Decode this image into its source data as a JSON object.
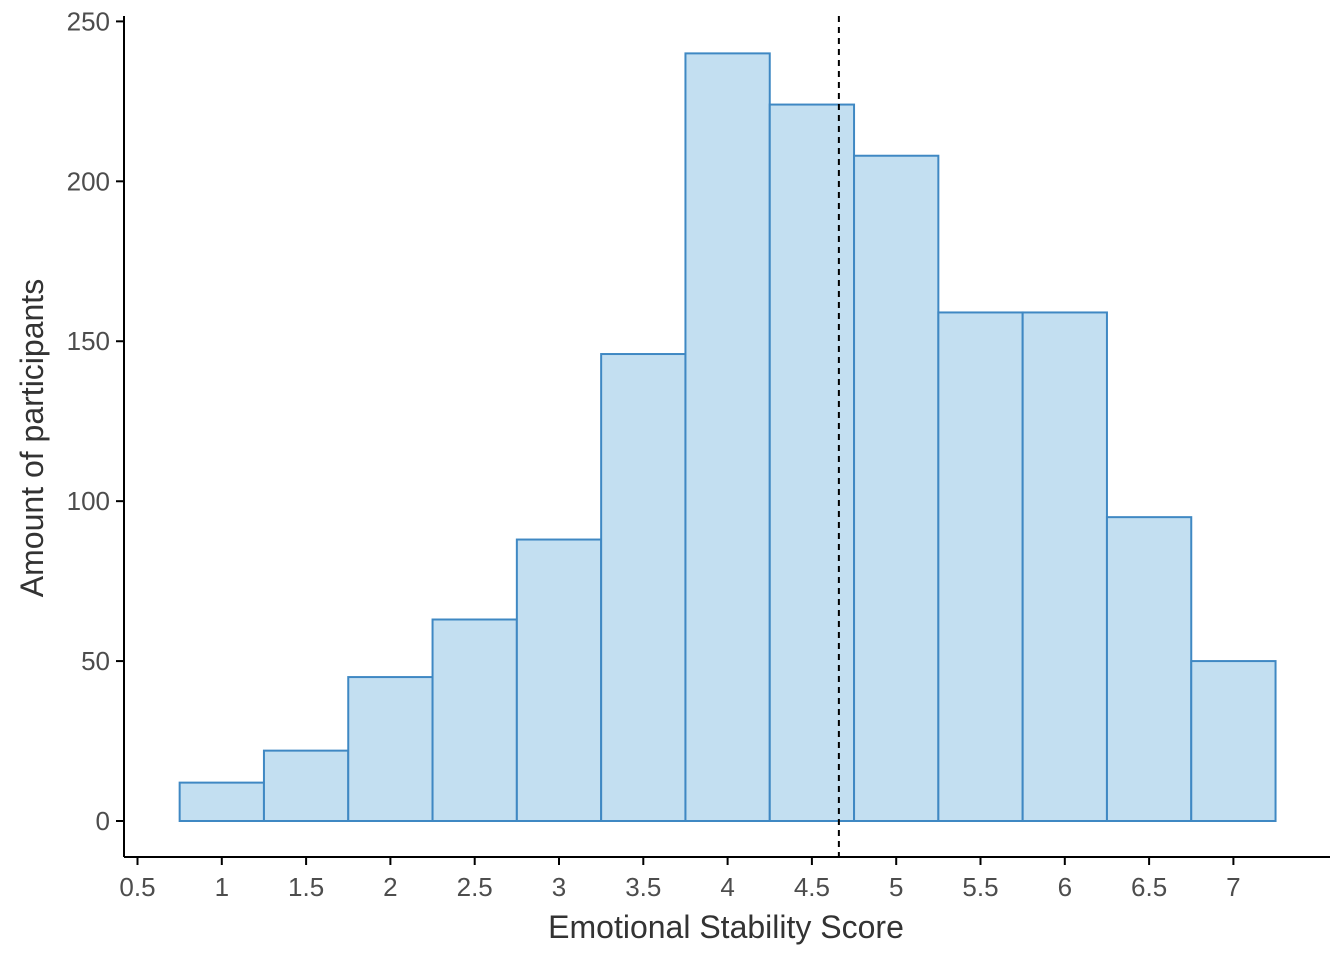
{
  "chart_data": {
    "type": "bar",
    "subtype": "histogram",
    "xlabel": "Emotional Stability Score",
    "ylabel": "Amount of participants",
    "bin_width": 0.5,
    "bins": [
      {
        "center": 1.0,
        "count": 12
      },
      {
        "center": 1.5,
        "count": 22
      },
      {
        "center": 2.0,
        "count": 45
      },
      {
        "center": 2.5,
        "count": 63
      },
      {
        "center": 3.0,
        "count": 88
      },
      {
        "center": 3.5,
        "count": 146
      },
      {
        "center": 4.0,
        "count": 240
      },
      {
        "center": 4.5,
        "count": 224
      },
      {
        "center": 5.0,
        "count": 208
      },
      {
        "center": 5.5,
        "count": 159
      },
      {
        "center": 6.0,
        "count": 159
      },
      {
        "center": 6.5,
        "count": 95
      },
      {
        "center": 7.0,
        "count": 50
      }
    ],
    "xlim": [
      0.5,
      7.5
    ],
    "ylim": [
      -11,
      252
    ],
    "x_ticks": [
      "0.5",
      "1",
      "1.5",
      "2",
      "2.5",
      "3",
      "3.5",
      "4",
      "4.5",
      "5",
      "5.5",
      "6",
      "6.5",
      "7"
    ],
    "y_ticks": [
      "0",
      "50",
      "100",
      "150",
      "200",
      "250"
    ],
    "reference_line": {
      "x": 4.66,
      "style": "dashed",
      "color": "#000000"
    },
    "bar_fill": "#c3dff1",
    "bar_stroke": "#3f88c3",
    "grid": false,
    "legend": "none"
  }
}
